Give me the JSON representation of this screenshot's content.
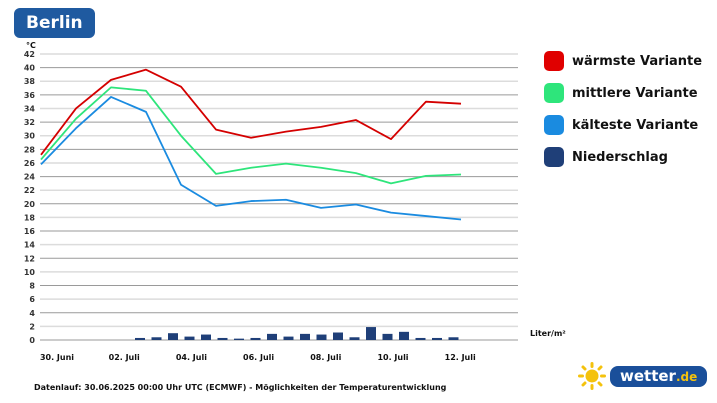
{
  "title": "Berlin",
  "footer": "Datenlauf: 30.06.2025 00:00 Uhr UTC (ECMWF) - Möglichkeiten der Temperaturentwicklung",
  "logo": {
    "text": "wetter",
    "suffix": ".de"
  },
  "colors": {
    "warm": "#d40000",
    "mid": "#2ee57b",
    "cold": "#1a8be0",
    "precip": "#1f3f78",
    "brand": "#1a4f9a"
  },
  "chart_data": {
    "type": "line",
    "ylabel": "°C",
    "precip_label": "Liter/m²",
    "ylim": [
      0,
      42
    ],
    "yticks": [
      0,
      2,
      4,
      6,
      8,
      10,
      12,
      14,
      16,
      18,
      20,
      22,
      24,
      26,
      28,
      30,
      32,
      34,
      36,
      38,
      40,
      42
    ],
    "grid": true,
    "legend_position": "right",
    "x_tick_labels": [
      "30. Juni",
      "02. Juli",
      "04. Juli",
      "06. Juli",
      "08. Juli",
      "10. Juli",
      "12. Juli"
    ],
    "x_days": [
      "30.06",
      "01.07",
      "02.07",
      "03.07",
      "04.07",
      "05.07",
      "06.07",
      "07.07",
      "08.07",
      "09.07",
      "10.07",
      "11.07",
      "12.07"
    ],
    "series": [
      {
        "name": "wärmste Variante",
        "color": "#d40000",
        "values": [
          27.2,
          34.0,
          38.2,
          39.7,
          37.2,
          30.9,
          29.7,
          30.6,
          31.3,
          32.3,
          29.5,
          35.0,
          34.7
        ]
      },
      {
        "name": "mittlere Variante",
        "color": "#2ee57b",
        "values": [
          26.5,
          32.5,
          37.1,
          36.6,
          30.0,
          24.4,
          25.3,
          25.9,
          25.3,
          24.5,
          23.0,
          24.1,
          24.3
        ]
      },
      {
        "name": "kälteste Variante",
        "color": "#1a8be0",
        "values": [
          25.8,
          31.1,
          35.7,
          33.5,
          22.8,
          19.7,
          20.4,
          20.6,
          19.4,
          19.9,
          18.7,
          18.2,
          17.7
        ]
      }
    ],
    "precipitation": {
      "name": "Niederschlag",
      "color": "#1f3f78",
      "interval": "12h",
      "values": [
        0,
        0,
        0,
        0,
        0,
        0,
        0.3,
        0.4,
        1.0,
        0.5,
        0.8,
        0.3,
        0.2,
        0.3,
        0.9,
        0.5,
        0.9,
        0.8,
        1.1,
        0.4,
        1.9,
        0.9,
        1.2,
        0.3,
        0.3,
        0.4
      ]
    }
  }
}
